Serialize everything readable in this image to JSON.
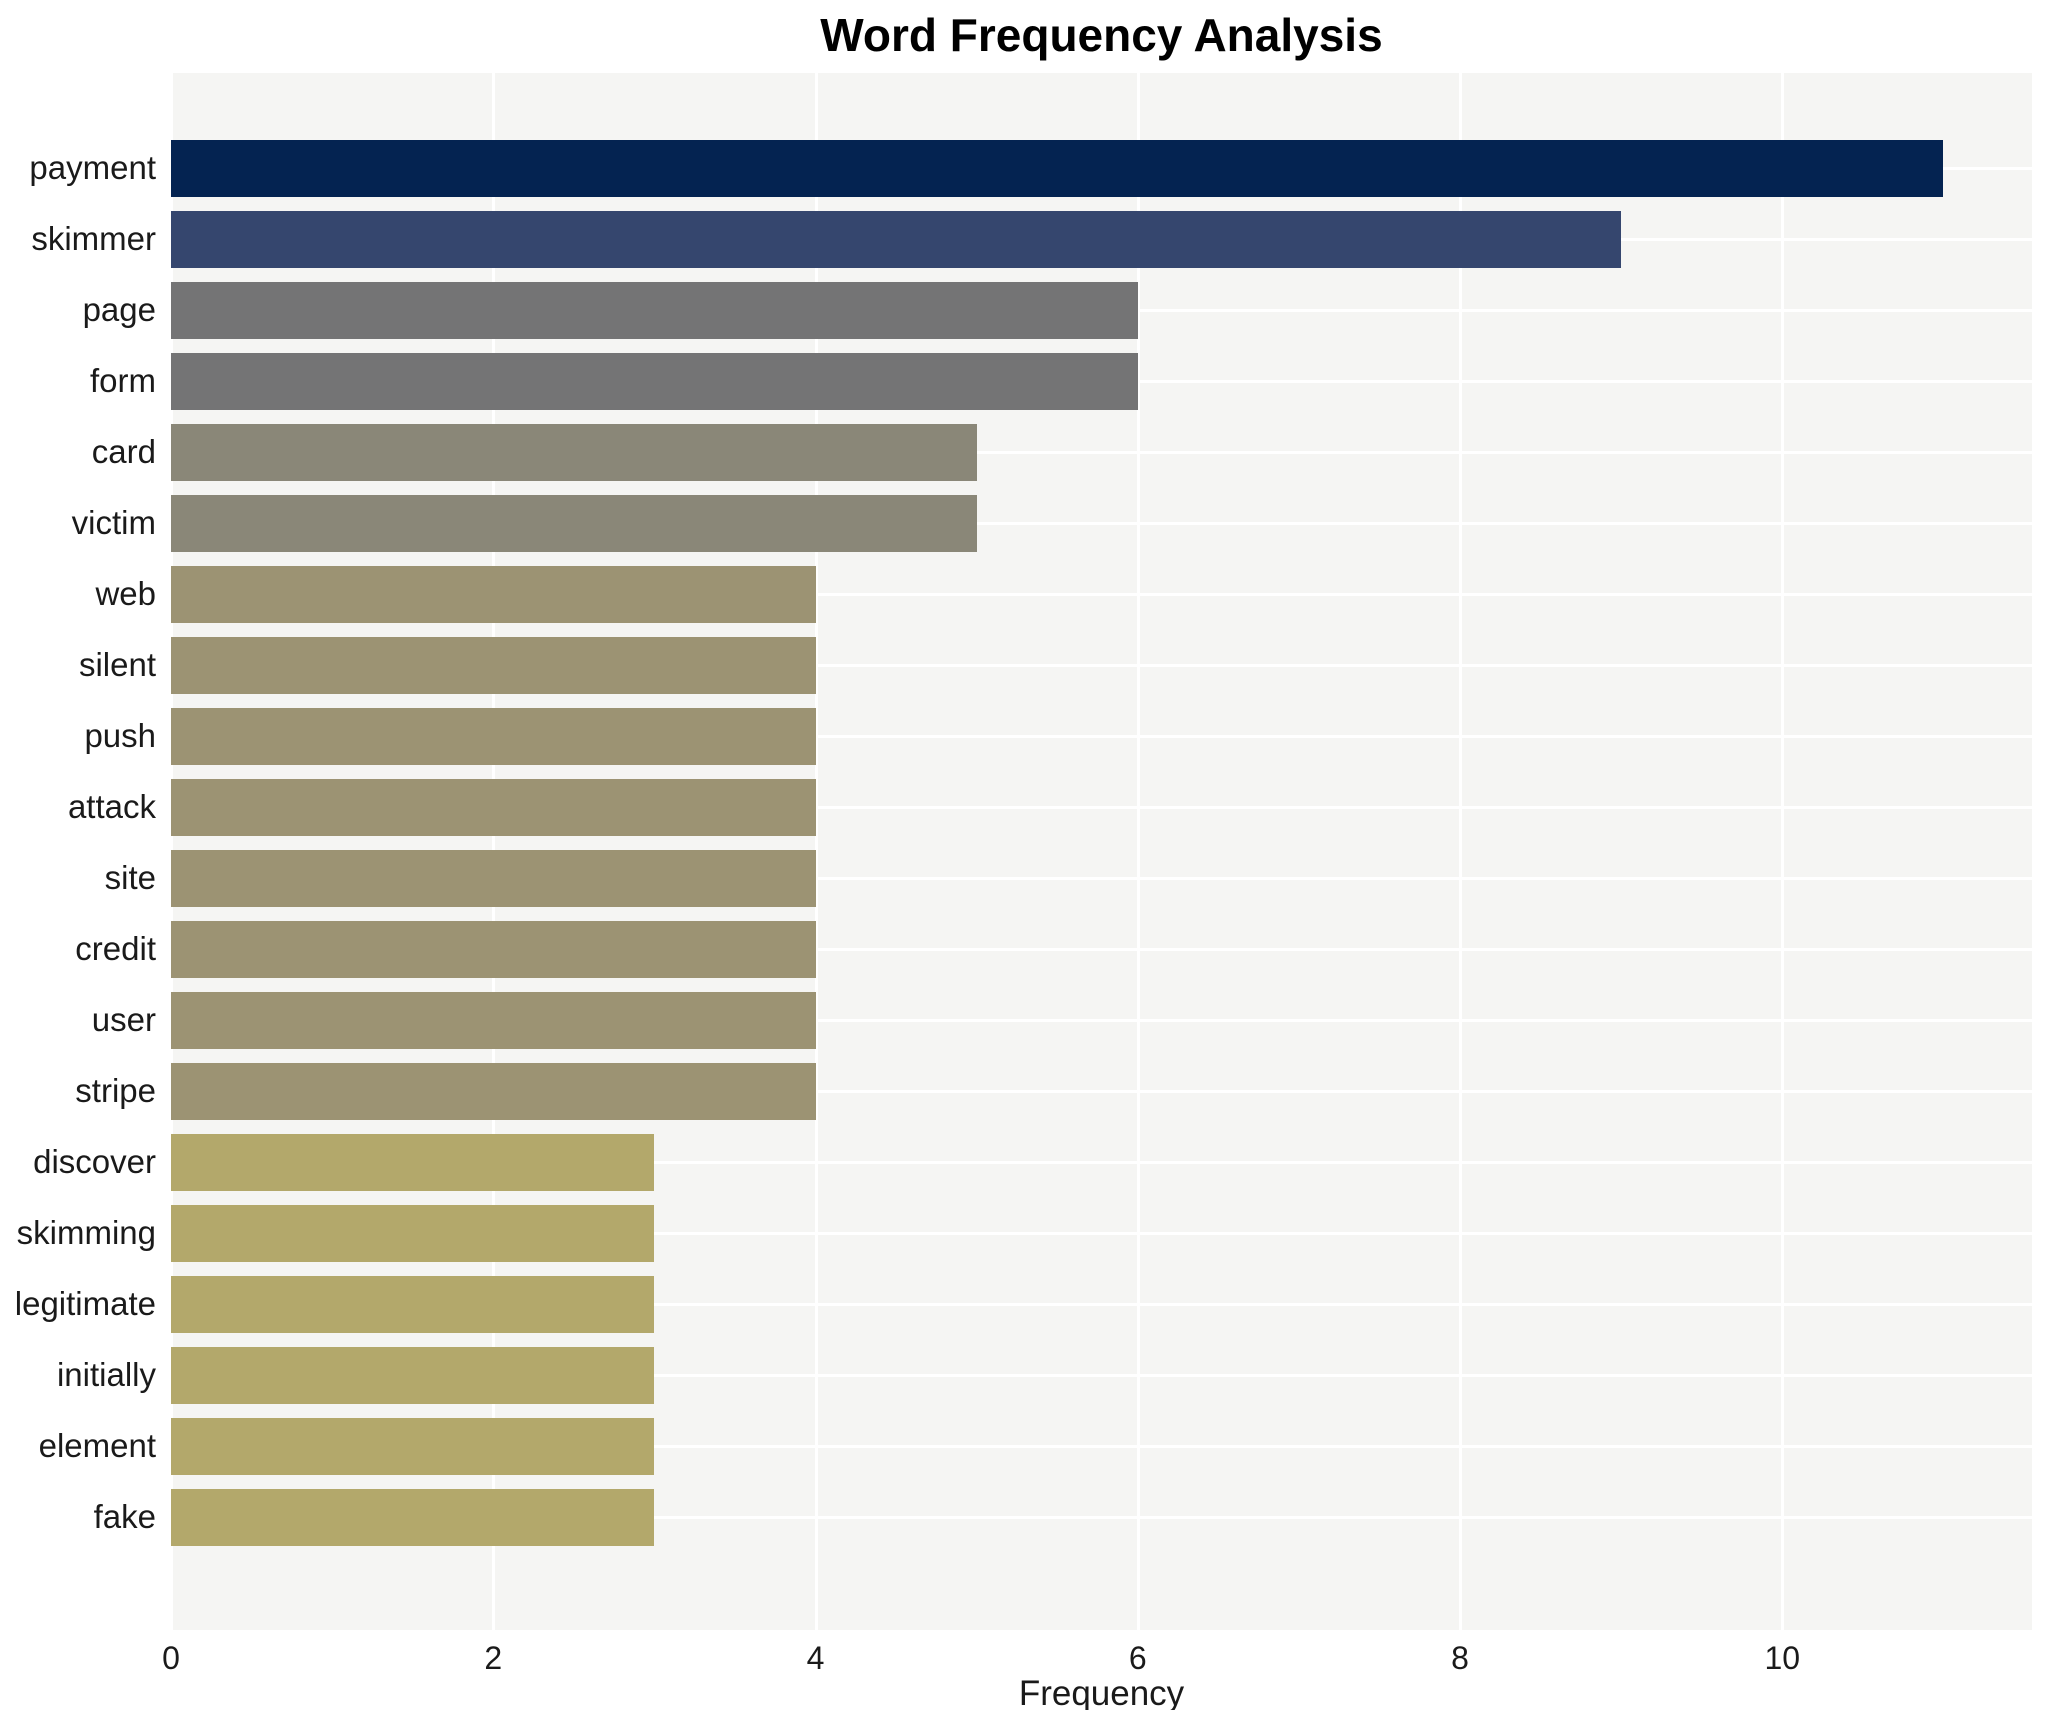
{
  "chart": {
    "title": "Word Frequency Analysis",
    "xlabel": "Frequency"
  },
  "chart_data": {
    "type": "bar",
    "orientation": "horizontal",
    "title": "Word Frequency Analysis",
    "xlabel": "Frequency",
    "ylabel": "",
    "categories": [
      "payment",
      "skimmer",
      "page",
      "form",
      "card",
      "victim",
      "web",
      "silent",
      "push",
      "attack",
      "site",
      "credit",
      "user",
      "stripe",
      "discover",
      "skimming",
      "legitimate",
      "initially",
      "element",
      "fake"
    ],
    "values": [
      11,
      9,
      6,
      6,
      5,
      5,
      4,
      4,
      4,
      4,
      4,
      4,
      4,
      4,
      3,
      3,
      3,
      3,
      3,
      3
    ],
    "bar_colors": [
      "#042351",
      "#35466e",
      "#747475",
      "#747475",
      "#8a8778",
      "#8a8778",
      "#9c9373",
      "#9c9373",
      "#9c9373",
      "#9c9373",
      "#9c9373",
      "#9c9373",
      "#9c9373",
      "#9c9373",
      "#b3a86b",
      "#b3a86b",
      "#b3a86b",
      "#b3a86b",
      "#b3a86b",
      "#b3a86b"
    ],
    "xlim": [
      0,
      11.55
    ],
    "xticks": [
      0,
      2,
      4,
      6,
      8,
      10
    ],
    "grid": true,
    "legend": null,
    "plot_background": "#f5f5f3",
    "grid_color": "#ffffff",
    "text_color": "#1a1a1a"
  }
}
